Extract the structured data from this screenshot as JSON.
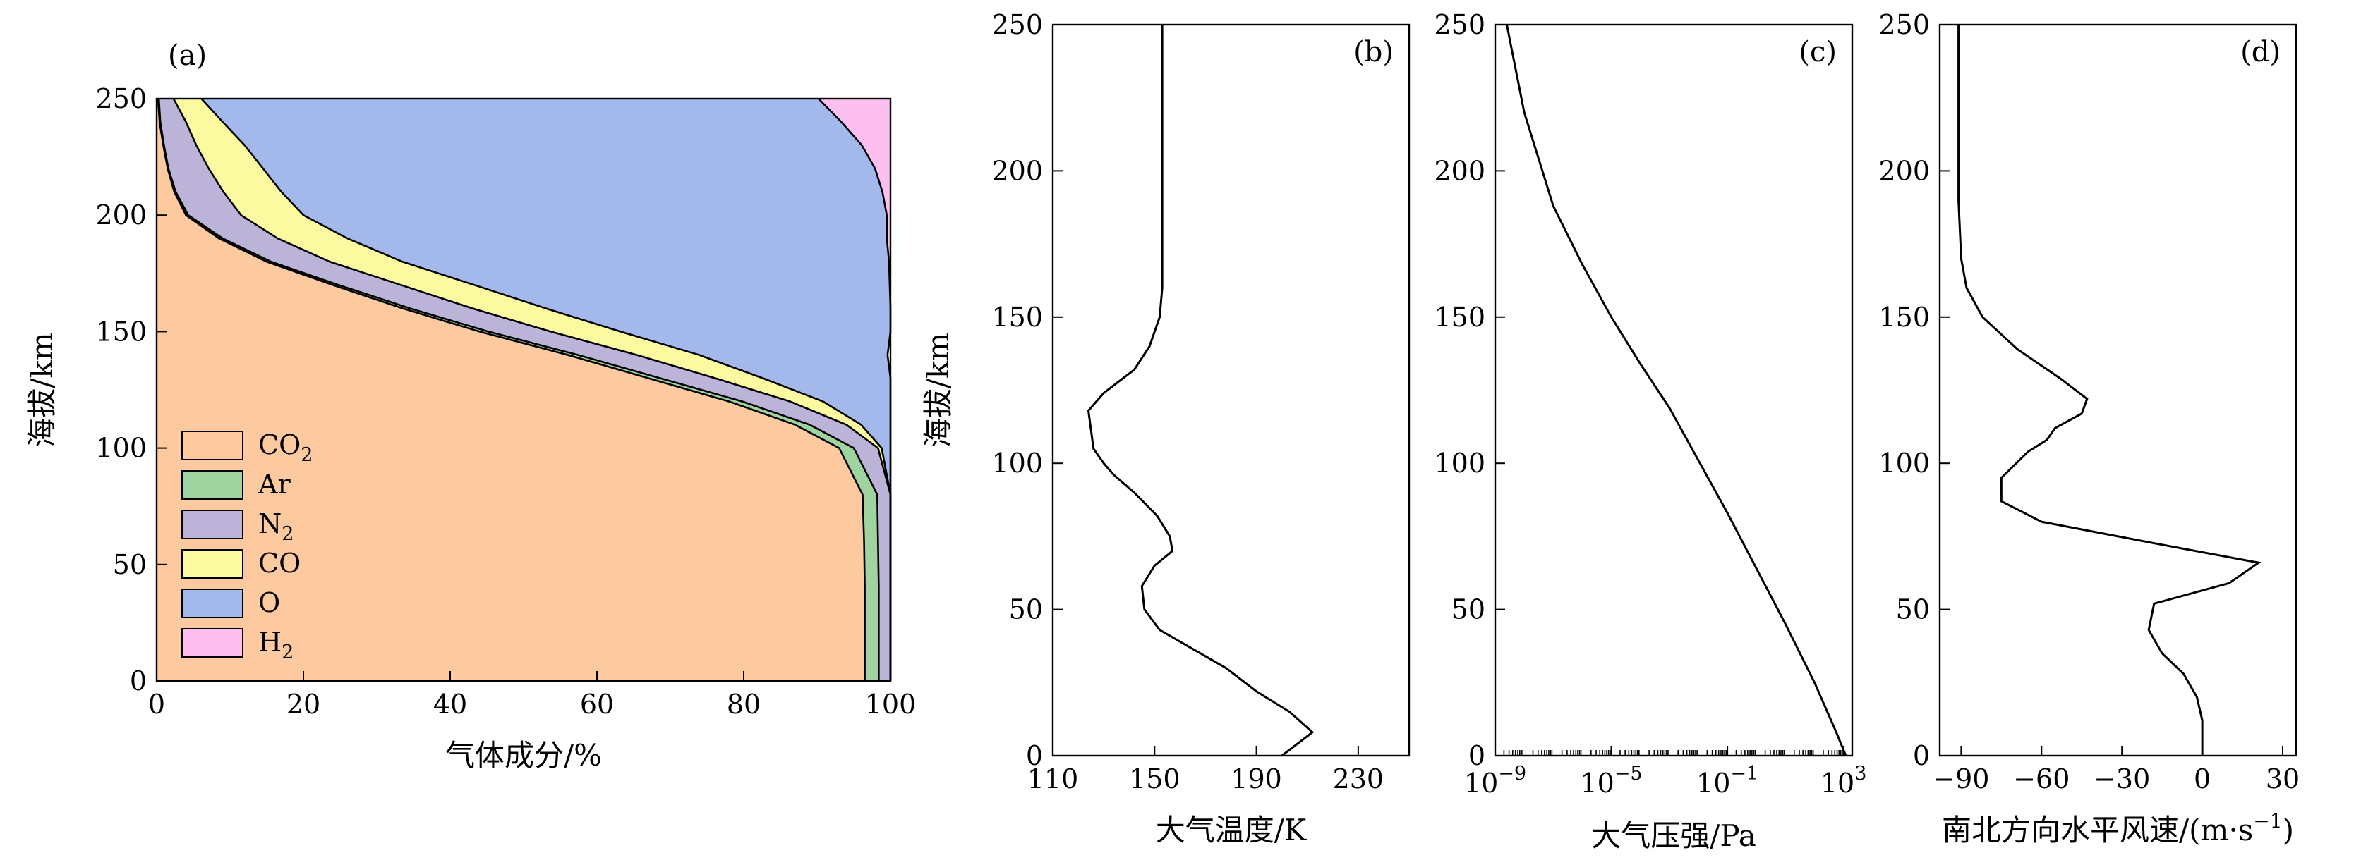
{
  "chart_data": [
    {
      "type": "area",
      "panel_label": "(a)",
      "xlabel": "气体成分/%",
      "ylabel": "海拔/km",
      "xlim": [
        0,
        100
      ],
      "ylim": [
        0,
        250
      ],
      "xticks": [
        "0",
        "20",
        "40",
        "60",
        "80",
        "100"
      ],
      "yticks": [
        "0",
        "50",
        "100",
        "150",
        "200",
        "250"
      ],
      "y": [
        0,
        20,
        40,
        60,
        80,
        100,
        110,
        120,
        130,
        140,
        150,
        160,
        170,
        180,
        190,
        200,
        210,
        220,
        230,
        240,
        250
      ],
      "stacked": true,
      "legend_position": "bottom-left",
      "series": [
        {
          "name": "CO",
          "sub": "2",
          "color": "#fdc99e",
          "values": [
            96.5,
            96.5,
            96.5,
            96.4,
            96.2,
            93.0,
            87.0,
            78.0,
            67.0,
            56.0,
            44.0,
            33.5,
            24.0,
            15.0,
            8.5,
            4.0,
            2.4,
            1.5,
            0.9,
            0.4,
            0.2
          ]
        },
        {
          "name": "Ar",
          "sub": "",
          "color": "#9fd4a0",
          "values": [
            1.9,
            1.9,
            1.9,
            1.9,
            2.0,
            2.0,
            2.0,
            1.8,
            1.6,
            1.4,
            1.2,
            1.0,
            0.8,
            0.6,
            0.5,
            0.3,
            0.2,
            0.1,
            0.1,
            0.1,
            0.1
          ]
        },
        {
          "name": "N",
          "sub": "2",
          "color": "#bcb4d8",
          "values": [
            1.6,
            1.6,
            1.6,
            1.7,
            1.8,
            3.3,
            5.0,
            6.5,
            7.5,
            8.0,
            8.5,
            8.5,
            8.5,
            8.0,
            7.5,
            7.2,
            6.5,
            5.5,
            4.4,
            3.5,
            2.0
          ]
        },
        {
          "name": "CO",
          "sub": "",
          "color": "#fbfaa1",
          "values": [
            0.0,
            0.0,
            0.0,
            0.0,
            0.0,
            0.5,
            2.0,
            4.5,
            6.5,
            8.5,
            9.5,
            10.0,
            10.0,
            9.9,
            9.5,
            8.5,
            7.9,
            7.4,
            6.6,
            5.0,
            3.8
          ]
        },
        {
          "name": "O",
          "sub": "",
          "color": "#a3b9ec",
          "values": [
            0.0,
            0.0,
            0.0,
            0.0,
            0.0,
            1.2,
            4.0,
            9.2,
            17.4,
            25.7,
            36.8,
            47.0,
            56.6,
            66.3,
            73.5,
            79.5,
            81.9,
            83.4,
            84.1,
            84.3,
            84.1
          ]
        },
        {
          "name": "H",
          "sub": "2",
          "color": "#fdbff0",
          "values": [
            0.0,
            0.0,
            0.0,
            0.0,
            0.0,
            0.0,
            0.0,
            0.0,
            0.0,
            0.0,
            0.0,
            0.0,
            0.1,
            0.2,
            0.5,
            0.5,
            1.1,
            2.1,
            3.9,
            6.7,
            9.8
          ]
        }
      ]
    },
    {
      "type": "line",
      "panel_label": "(b)",
      "xlabel": "大气温度/K",
      "ylabel": "海拔/km",
      "xlim": [
        110,
        250
      ],
      "ylim": [
        0,
        250
      ],
      "xticks": [
        "110",
        "150",
        "190",
        "230"
      ],
      "yticks": [
        "0",
        "50",
        "100",
        "150",
        "200",
        "250"
      ],
      "series": [
        {
          "x": [
            200,
            212,
            203,
            190,
            178,
            164,
            152,
            146,
            145,
            150,
            157,
            156,
            151,
            142,
            134,
            130,
            126,
            124,
            130,
            142,
            148,
            152,
            153,
            153,
            153,
            153,
            153
          ],
          "y": [
            0,
            8,
            15,
            22,
            30,
            37,
            43,
            50,
            58,
            65,
            70,
            75,
            82,
            90,
            96,
            100,
            105,
            118,
            124,
            132,
            140,
            150,
            160,
            170,
            200,
            230,
            250
          ]
        }
      ]
    },
    {
      "type": "line",
      "panel_label": "(c)",
      "xlabel": "大气压强/Pa",
      "xlim": [
        -9,
        3.3
      ],
      "x_scale": "log10",
      "xticks": [
        {
          "base": "10",
          "exp": "−9"
        },
        {
          "base": "10",
          "exp": "−5"
        },
        {
          "base": "10",
          "exp": "−1"
        },
        {
          "base": "10",
          "exp": "3"
        }
      ],
      "ylim": [
        0,
        250
      ],
      "yticks": [
        "0",
        "50",
        "100",
        "150",
        "200",
        "250"
      ],
      "series": [
        {
          "log10_x": [
            3.08,
            2.75,
            2.0,
            1.0,
            0.0,
            -1.0,
            -2.0,
            -3.0,
            -4.0,
            -5.0,
            -6.0,
            -7.0,
            -8.0,
            -8.6
          ],
          "y": [
            0,
            8,
            25,
            45,
            64,
            83,
            101,
            119,
            134,
            150,
            168,
            188,
            220,
            250
          ]
        }
      ]
    },
    {
      "type": "line",
      "panel_label": "(d)",
      "xlabel": "南北方向水平风速/(m·s",
      "xlabel_sup": "−1",
      "xlabel_tail": ")",
      "xlim": [
        -98,
        35
      ],
      "ylim": [
        0,
        250
      ],
      "xticks": [
        "−90",
        "−60",
        "−30",
        "0",
        "30"
      ],
      "yticks": [
        "0",
        "50",
        "100",
        "150",
        "200",
        "250"
      ],
      "series": [
        {
          "x": [
            0,
            0,
            -2,
            -7,
            -15,
            -20,
            -18,
            10,
            21,
            -20,
            -60,
            -75,
            -75,
            -65,
            -58,
            -55,
            -45,
            -43,
            -53,
            -69,
            -82,
            -88,
            -90,
            -91,
            -91,
            -91
          ],
          "y": [
            0,
            12,
            20,
            28,
            35,
            43,
            52,
            59,
            66,
            73,
            80,
            87,
            95,
            104,
            108,
            112,
            117,
            122,
            129,
            139,
            150,
            160,
            170,
            190,
            220,
            250
          ]
        }
      ]
    }
  ]
}
